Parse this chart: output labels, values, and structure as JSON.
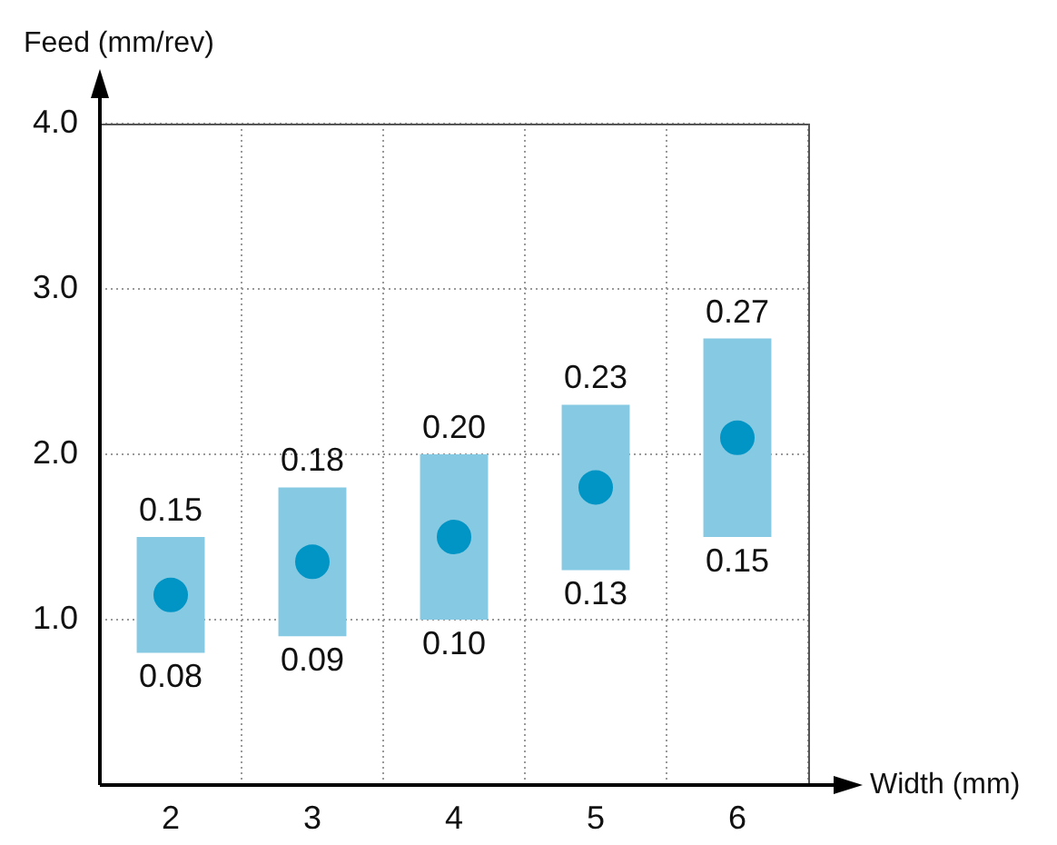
{
  "chart_data": {
    "type": "bar",
    "xlabel": "Width (mm)",
    "ylabel": "Feed (mm/rev)",
    "categories": [
      "2",
      "3",
      "4",
      "5",
      "6"
    ],
    "series": [
      {
        "color": "#85c9e3",
        "base": [
          0.8,
          0.9,
          1.0,
          1.3,
          1.5
        ],
        "values": [
          0.7,
          0.9,
          1.0,
          1.0,
          1.2
        ]
      },
      {
        "type": "scatter",
        "color": "#0095c5",
        "x": [
          "2",
          "3",
          "4",
          "5",
          "6"
        ],
        "values": [
          1.15,
          1.35,
          1.5,
          1.8,
          2.1
        ]
      }
    ],
    "ylim": [
      0,
      4
    ],
    "yticks": [
      {
        "value": 1,
        "label": "1.0"
      },
      {
        "value": 2,
        "label": "2.0"
      },
      {
        "value": 3,
        "label": "3.0"
      },
      {
        "value": 4,
        "label": "4.0"
      }
    ],
    "grid": true,
    "legend": false,
    "marker": "circle",
    "annotations": [
      {
        "text": "0.15",
        "x": "2",
        "y": 1.5
      },
      {
        "text": "0.08",
        "x": "2",
        "y": 0.8
      },
      {
        "text": "0.18",
        "x": "3",
        "y": 1.8
      },
      {
        "text": "0.09",
        "x": "3",
        "y": 0.9
      },
      {
        "text": "0.20",
        "x": "4",
        "y": 2.0
      },
      {
        "text": "0.10",
        "x": "4",
        "y": 1.0
      },
      {
        "text": "0.23",
        "x": "5",
        "y": 2.3
      },
      {
        "text": "0.13",
        "x": "5",
        "y": 1.3
      },
      {
        "text": "0.27",
        "x": "6",
        "y": 2.7
      },
      {
        "text": "0.15",
        "x": "6",
        "y": 1.5
      }
    ]
  }
}
